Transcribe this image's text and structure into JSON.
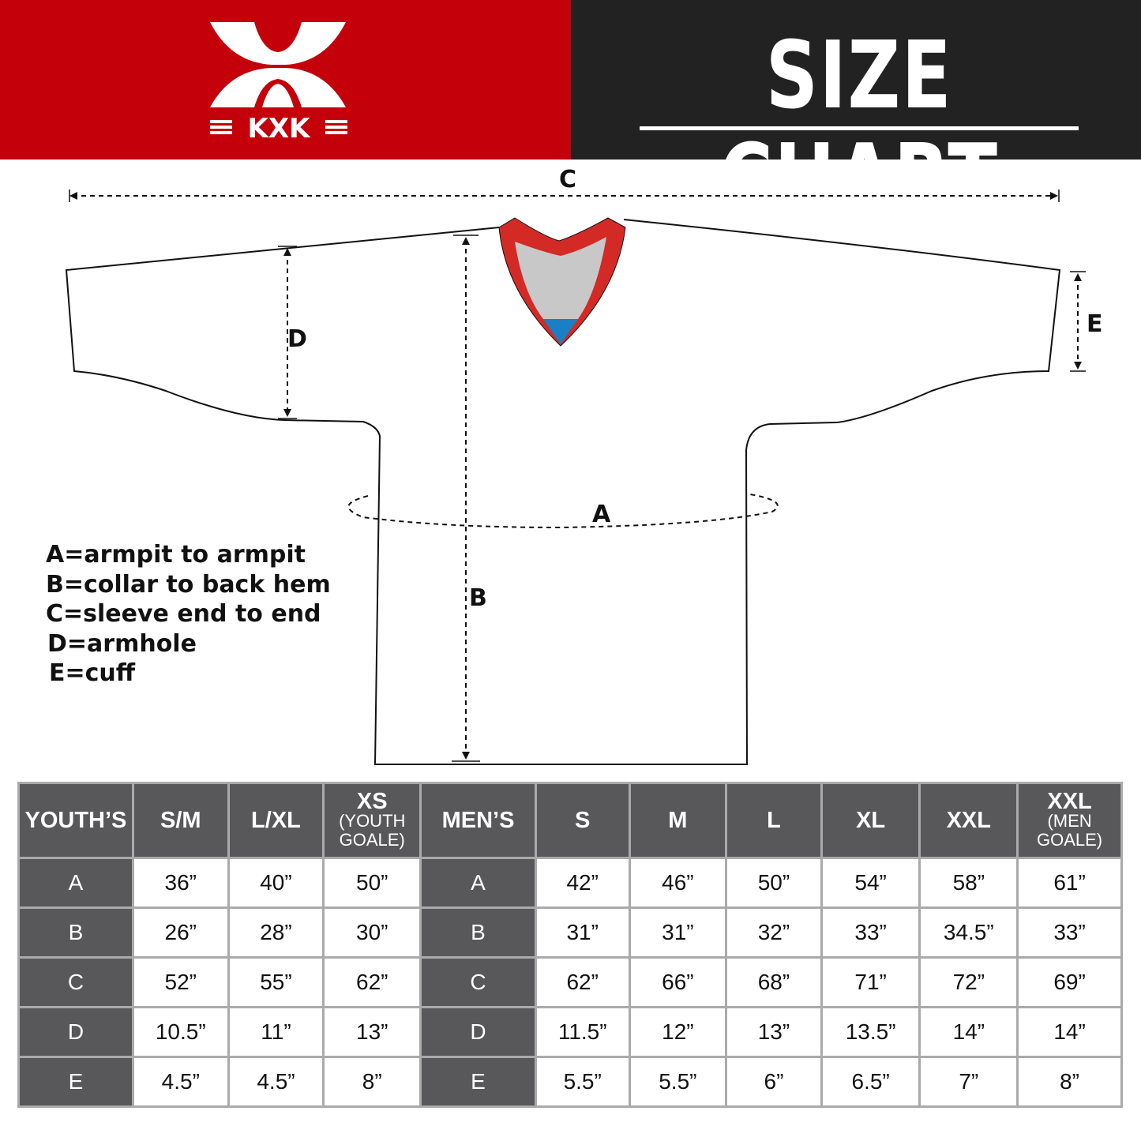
{
  "brand": {
    "logo_text": "KXK"
  },
  "title": "SIZE CHART",
  "diagram": {
    "labels": {
      "A": "A",
      "B": "B",
      "C": "C",
      "D": "D",
      "E": "E"
    },
    "legend": [
      "A=armpit to armpit",
      "B=collar to back hem",
      "C=sleeve end to end",
      "D=armhole",
      "E=cuff"
    ],
    "colors": {
      "collar_trim": "#d32a26",
      "collar_inner": "#c8c8c8",
      "collar_tip": "#1a7fc4",
      "header_red": "#c4000a",
      "header_dark": "#222222",
      "table_header": "#58585a"
    }
  },
  "table": {
    "youth": {
      "header": "YOUTH’S",
      "columns": [
        {
          "size": "S/M"
        },
        {
          "size": "L/XL"
        },
        {
          "size": "XS",
          "note": "(YOUTH GOALE)"
        }
      ],
      "rows": [
        {
          "label": "A",
          "values": [
            "36”",
            "40”",
            "50”"
          ]
        },
        {
          "label": "B",
          "values": [
            "26”",
            "28”",
            "30”"
          ]
        },
        {
          "label": "C",
          "values": [
            "52”",
            "55”",
            "62”"
          ]
        },
        {
          "label": "D",
          "values": [
            "10.5”",
            "11”",
            "13”"
          ]
        },
        {
          "label": "E",
          "values": [
            "4.5”",
            "4.5”",
            "8”"
          ]
        }
      ]
    },
    "men": {
      "header": "MEN’S",
      "columns": [
        {
          "size": "S"
        },
        {
          "size": "M"
        },
        {
          "size": "L"
        },
        {
          "size": "XL"
        },
        {
          "size": "XXL"
        },
        {
          "size": "XXL",
          "note": "(MEN GOALE)"
        }
      ],
      "rows": [
        {
          "label": "A",
          "values": [
            "42”",
            "46”",
            "50”",
            "54”",
            "58”",
            "61”"
          ]
        },
        {
          "label": "B",
          "values": [
            "31”",
            "31”",
            "32”",
            "33”",
            "34.5”",
            "33”"
          ]
        },
        {
          "label": "C",
          "values": [
            "62”",
            "66”",
            "68”",
            "71”",
            "72”",
            "69”"
          ]
        },
        {
          "label": "D",
          "values": [
            "11.5”",
            "12”",
            "13”",
            "13.5”",
            "14”",
            "14”"
          ]
        },
        {
          "label": "E",
          "values": [
            "5.5”",
            "5.5”",
            "6”",
            "6.5”",
            "7”",
            "8”"
          ]
        }
      ]
    }
  }
}
